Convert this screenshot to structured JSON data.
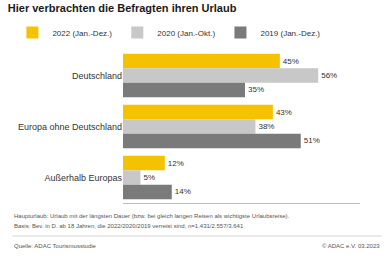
{
  "chart_data": {
    "type": "bar",
    "orientation": "horizontal",
    "title": "Hier verbrachten die Befragten ihren Urlaub",
    "categories": [
      "Deutschland",
      "Europa ohne Deutschland",
      "Außerhalb Europas"
    ],
    "series": [
      {
        "name": "2022 (Jan.-Dez.)",
        "color": "#F5C200",
        "values": [
          45,
          43,
          12
        ],
        "value_labels": [
          "45%",
          "43%",
          "12%"
        ]
      },
      {
        "name": "2020 (Jan.-Okt.)",
        "color": "#C8C8C8",
        "values": [
          56,
          38,
          5
        ],
        "value_labels": [
          "56%",
          "38%",
          "5%"
        ]
      },
      {
        "name": "2019 (Jan.-Dez.)",
        "color": "#7A7A7A",
        "values": [
          35,
          51,
          14
        ],
        "value_labels": [
          "35%",
          "51%",
          "14%"
        ]
      }
    ],
    "xlim": [
      0,
      68
    ],
    "data_labels": true,
    "tick_labels": "y",
    "grid": false,
    "legend": "top",
    "annotations": [
      "Haupturlaub: Urlaub mit der längsten Dauer (bzw. bei gleich langen Reisen als wichtigste Urlaubsreise).",
      "Basis: Bev. in D. ab 18 Jahren, die 2022/2020/2019 verreist sind, n=1.431/2.557/3.641",
      "Quelle: ADAC Tourismusstudie",
      "© ADAC e.V. 03.2023"
    ]
  }
}
